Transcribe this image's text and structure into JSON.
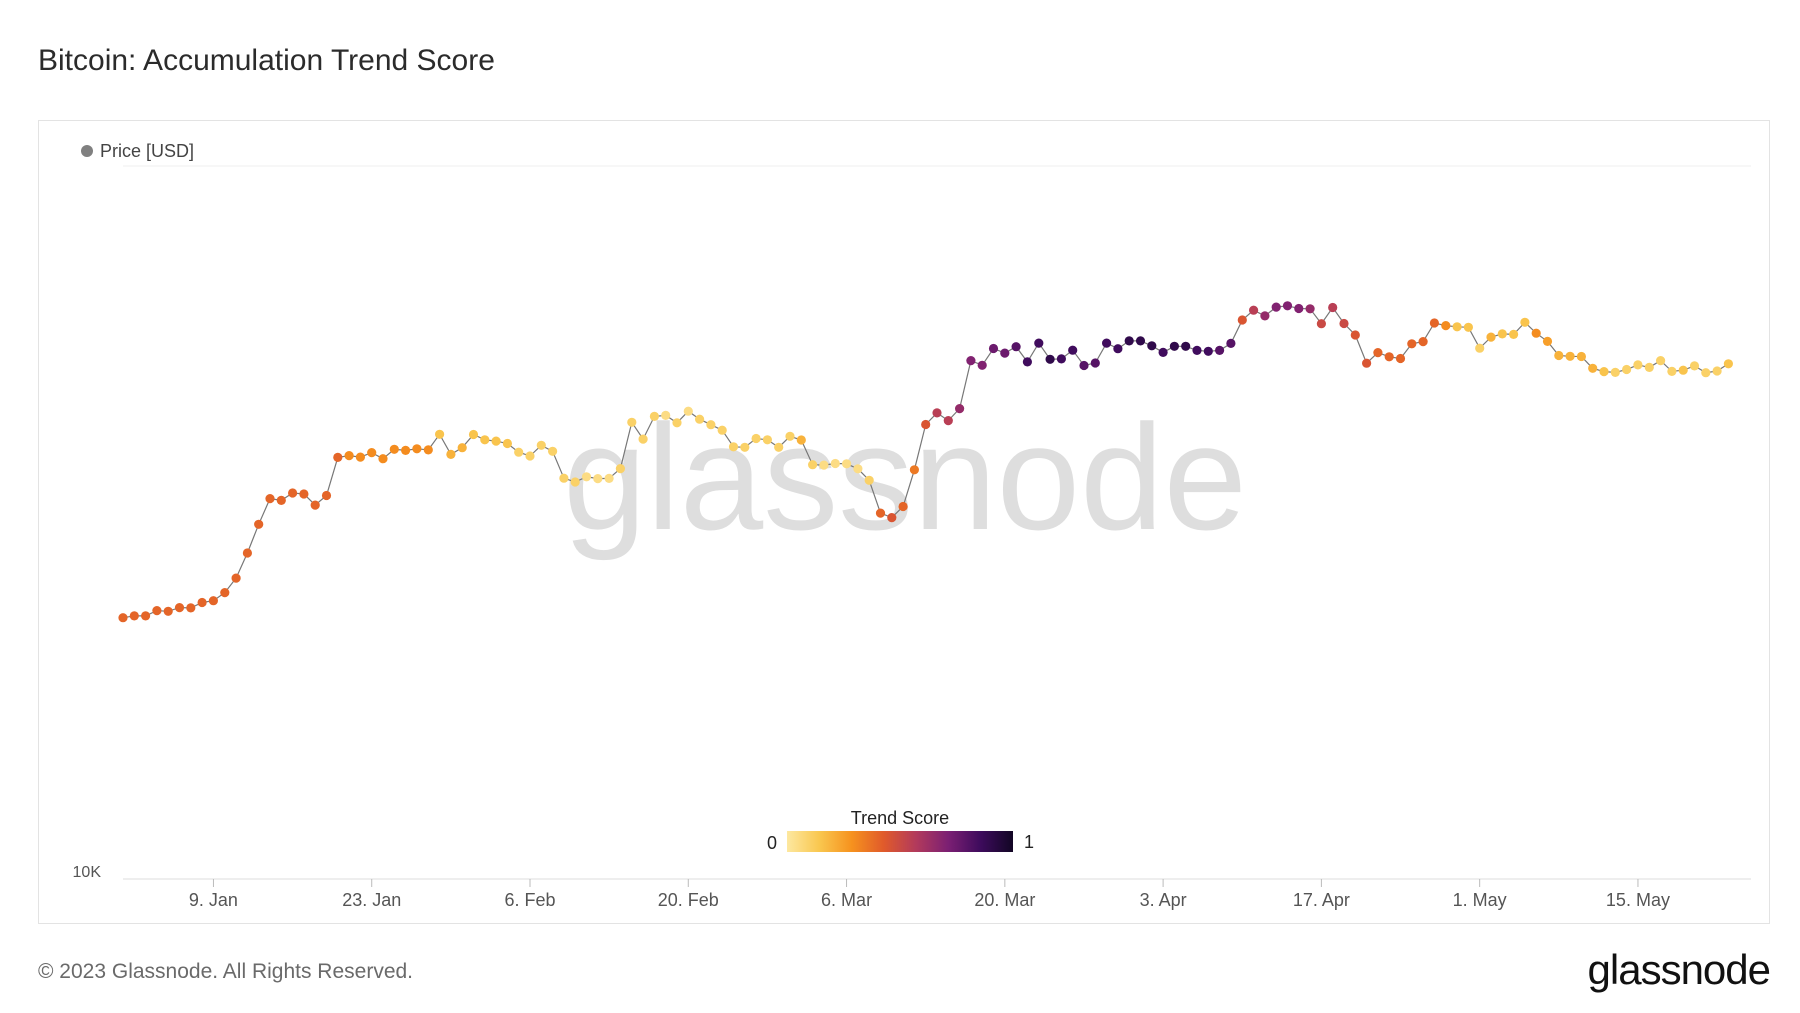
{
  "page": {
    "title": "Bitcoin: Accumulation Trend Score",
    "copyright": "© 2023 Glassnode. All Rights Reserved.",
    "logo_text": "glassnode",
    "watermark": "glassnode"
  },
  "chart_data": {
    "type": "scatter",
    "subtype": "line-with-colored-markers",
    "title": "Bitcoin: Accumulation Trend Score",
    "legend": [
      {
        "label": "Price [USD]",
        "color": "#808080"
      }
    ],
    "legend_placement": "top-left",
    "y_tick_labels": [
      "10K"
    ],
    "y_scale": "log",
    "ylim": [
      10000,
      40000
    ],
    "x_tick_labels": [
      "9. Jan",
      "23. Jan",
      "6. Feb",
      "20. Feb",
      "6. Mar",
      "20. Mar",
      "3. Apr",
      "17. Apr",
      "1. May",
      "15. May"
    ],
    "x_tick_dates": [
      "2023-01-09",
      "2023-01-23",
      "2023-02-06",
      "2023-02-20",
      "2023-03-06",
      "2023-03-20",
      "2023-04-03",
      "2023-04-17",
      "2023-05-01",
      "2023-05-15"
    ],
    "xlim": [
      "2023-01-01",
      "2023-05-25"
    ],
    "grid": false,
    "colorscale": {
      "title": "Trend Score",
      "min_label": "0",
      "max_label": "1",
      "stops": [
        "#fde8a0",
        "#f9c74f",
        "#f6921e",
        "#e05a2b",
        "#b23a5c",
        "#7b1f73",
        "#3d0b5c",
        "#120624"
      ]
    },
    "series": [
      {
        "name": "Price [USD]",
        "x": [
          "2023-01-01",
          "2023-01-02",
          "2023-01-03",
          "2023-01-04",
          "2023-01-05",
          "2023-01-06",
          "2023-01-07",
          "2023-01-08",
          "2023-01-09",
          "2023-01-10",
          "2023-01-11",
          "2023-01-12",
          "2023-01-13",
          "2023-01-14",
          "2023-01-15",
          "2023-01-16",
          "2023-01-17",
          "2023-01-18",
          "2023-01-19",
          "2023-01-20",
          "2023-01-21",
          "2023-01-22",
          "2023-01-23",
          "2023-01-24",
          "2023-01-25",
          "2023-01-26",
          "2023-01-27",
          "2023-01-28",
          "2023-01-29",
          "2023-01-30",
          "2023-01-31",
          "2023-02-01",
          "2023-02-02",
          "2023-02-03",
          "2023-02-04",
          "2023-02-05",
          "2023-02-06",
          "2023-02-07",
          "2023-02-08",
          "2023-02-09",
          "2023-02-10",
          "2023-02-11",
          "2023-02-12",
          "2023-02-13",
          "2023-02-14",
          "2023-02-15",
          "2023-02-16",
          "2023-02-17",
          "2023-02-18",
          "2023-02-19",
          "2023-02-20",
          "2023-02-21",
          "2023-02-22",
          "2023-02-23",
          "2023-02-24",
          "2023-02-25",
          "2023-02-26",
          "2023-02-27",
          "2023-02-28",
          "2023-03-01",
          "2023-03-02",
          "2023-03-03",
          "2023-03-04",
          "2023-03-05",
          "2023-03-06",
          "2023-03-07",
          "2023-03-08",
          "2023-03-09",
          "2023-03-10",
          "2023-03-11",
          "2023-03-12",
          "2023-03-13",
          "2023-03-14",
          "2023-03-15",
          "2023-03-16",
          "2023-03-17",
          "2023-03-18",
          "2023-03-19",
          "2023-03-20",
          "2023-03-21",
          "2023-03-22",
          "2023-03-23",
          "2023-03-24",
          "2023-03-25",
          "2023-03-26",
          "2023-03-27",
          "2023-03-28",
          "2023-03-29",
          "2023-03-30",
          "2023-03-31",
          "2023-04-01",
          "2023-04-02",
          "2023-04-03",
          "2023-04-04",
          "2023-04-05",
          "2023-04-06",
          "2023-04-07",
          "2023-04-08",
          "2023-04-09",
          "2023-04-10",
          "2023-04-11",
          "2023-04-12",
          "2023-04-13",
          "2023-04-14",
          "2023-04-15",
          "2023-04-16",
          "2023-04-17",
          "2023-04-18",
          "2023-04-19",
          "2023-04-20",
          "2023-04-21",
          "2023-04-22",
          "2023-04-23",
          "2023-04-24",
          "2023-04-25",
          "2023-04-26",
          "2023-04-27",
          "2023-04-28",
          "2023-04-29",
          "2023-04-30",
          "2023-05-01",
          "2023-05-02",
          "2023-05-03",
          "2023-05-04",
          "2023-05-05",
          "2023-05-06",
          "2023-05-07",
          "2023-05-08",
          "2023-05-09",
          "2023-05-10",
          "2023-05-11",
          "2023-05-12",
          "2023-05-13",
          "2023-05-14",
          "2023-05-15",
          "2023-05-16",
          "2023-05-17",
          "2023-05-18",
          "2023-05-19",
          "2023-05-20",
          "2023-05-21",
          "2023-05-22",
          "2023-05-23"
        ],
        "y": [
          16620,
          16680,
          16680,
          16850,
          16830,
          16950,
          16940,
          17120,
          17180,
          17450,
          17950,
          18850,
          19930,
          20950,
          20880,
          21180,
          21140,
          20690,
          21080,
          22700,
          22780,
          22710,
          22910,
          22640,
          23060,
          23010,
          23080,
          23030,
          23740,
          22830,
          23130,
          23730,
          23490,
          23430,
          23320,
          22930,
          22760,
          23240,
          22970,
          21800,
          21640,
          21860,
          21780,
          21790,
          22210,
          24300,
          23520,
          24580,
          24630,
          24280,
          24830,
          24450,
          24190,
          23930,
          23170,
          23150,
          23550,
          23490,
          23150,
          23650,
          23480,
          22380,
          22360,
          22430,
          22420,
          22200,
          21710,
          20370,
          20190,
          20630,
          22160,
          24200,
          24750,
          24380,
          24960,
          27400,
          27150,
          28050,
          27800,
          28150,
          27330,
          28350,
          27470,
          27490,
          27960,
          27140,
          27270,
          28350,
          28040,
          28470,
          28470,
          28200,
          27840,
          28170,
          28170,
          27950,
          27900,
          27950,
          28330,
          29650,
          30220,
          29890,
          30400,
          30480,
          30320,
          30300,
          29440,
          30380,
          29450,
          28800,
          27260,
          27830,
          27600,
          27510,
          28310,
          28430,
          29480,
          29330,
          29260,
          29230,
          28070,
          28680,
          28860,
          28830,
          29520,
          28900,
          28440,
          27670,
          27630,
          27620,
          26990,
          26820,
          26780,
          26930,
          27170,
          27040,
          27400,
          26830,
          26890,
          27120,
          26760,
          26850,
          27230
        ],
        "trend_score": [
          0.4,
          0.4,
          0.4,
          0.4,
          0.4,
          0.4,
          0.4,
          0.4,
          0.4,
          0.4,
          0.4,
          0.4,
          0.4,
          0.4,
          0.4,
          0.4,
          0.4,
          0.4,
          0.4,
          0.4,
          0.3,
          0.3,
          0.3,
          0.3,
          0.3,
          0.3,
          0.3,
          0.3,
          0.15,
          0.2,
          0.2,
          0.15,
          0.15,
          0.15,
          0.15,
          0.1,
          0.1,
          0.1,
          0.1,
          0.1,
          0.1,
          0.05,
          0.05,
          0.05,
          0.1,
          0.1,
          0.1,
          0.1,
          0.05,
          0.1,
          0.05,
          0.1,
          0.1,
          0.1,
          0.1,
          0.1,
          0.1,
          0.1,
          0.1,
          0.1,
          0.2,
          0.1,
          0.05,
          0.05,
          0.05,
          0.05,
          0.1,
          0.4,
          0.45,
          0.4,
          0.35,
          0.45,
          0.55,
          0.55,
          0.65,
          0.7,
          0.7,
          0.75,
          0.75,
          0.8,
          0.85,
          0.85,
          0.9,
          0.85,
          0.85,
          0.8,
          0.8,
          0.85,
          0.85,
          0.9,
          0.9,
          0.9,
          0.85,
          0.9,
          0.9,
          0.85,
          0.85,
          0.8,
          0.8,
          0.45,
          0.55,
          0.65,
          0.7,
          0.7,
          0.7,
          0.65,
          0.5,
          0.55,
          0.5,
          0.45,
          0.45,
          0.4,
          0.4,
          0.4,
          0.4,
          0.4,
          0.4,
          0.3,
          0.15,
          0.15,
          0.1,
          0.2,
          0.15,
          0.15,
          0.15,
          0.3,
          0.25,
          0.2,
          0.2,
          0.2,
          0.2,
          0.15,
          0.1,
          0.1,
          0.1,
          0.1,
          0.1,
          0.1,
          0.15,
          0.1,
          0.1,
          0.1,
          0.15
        ]
      }
    ]
  }
}
